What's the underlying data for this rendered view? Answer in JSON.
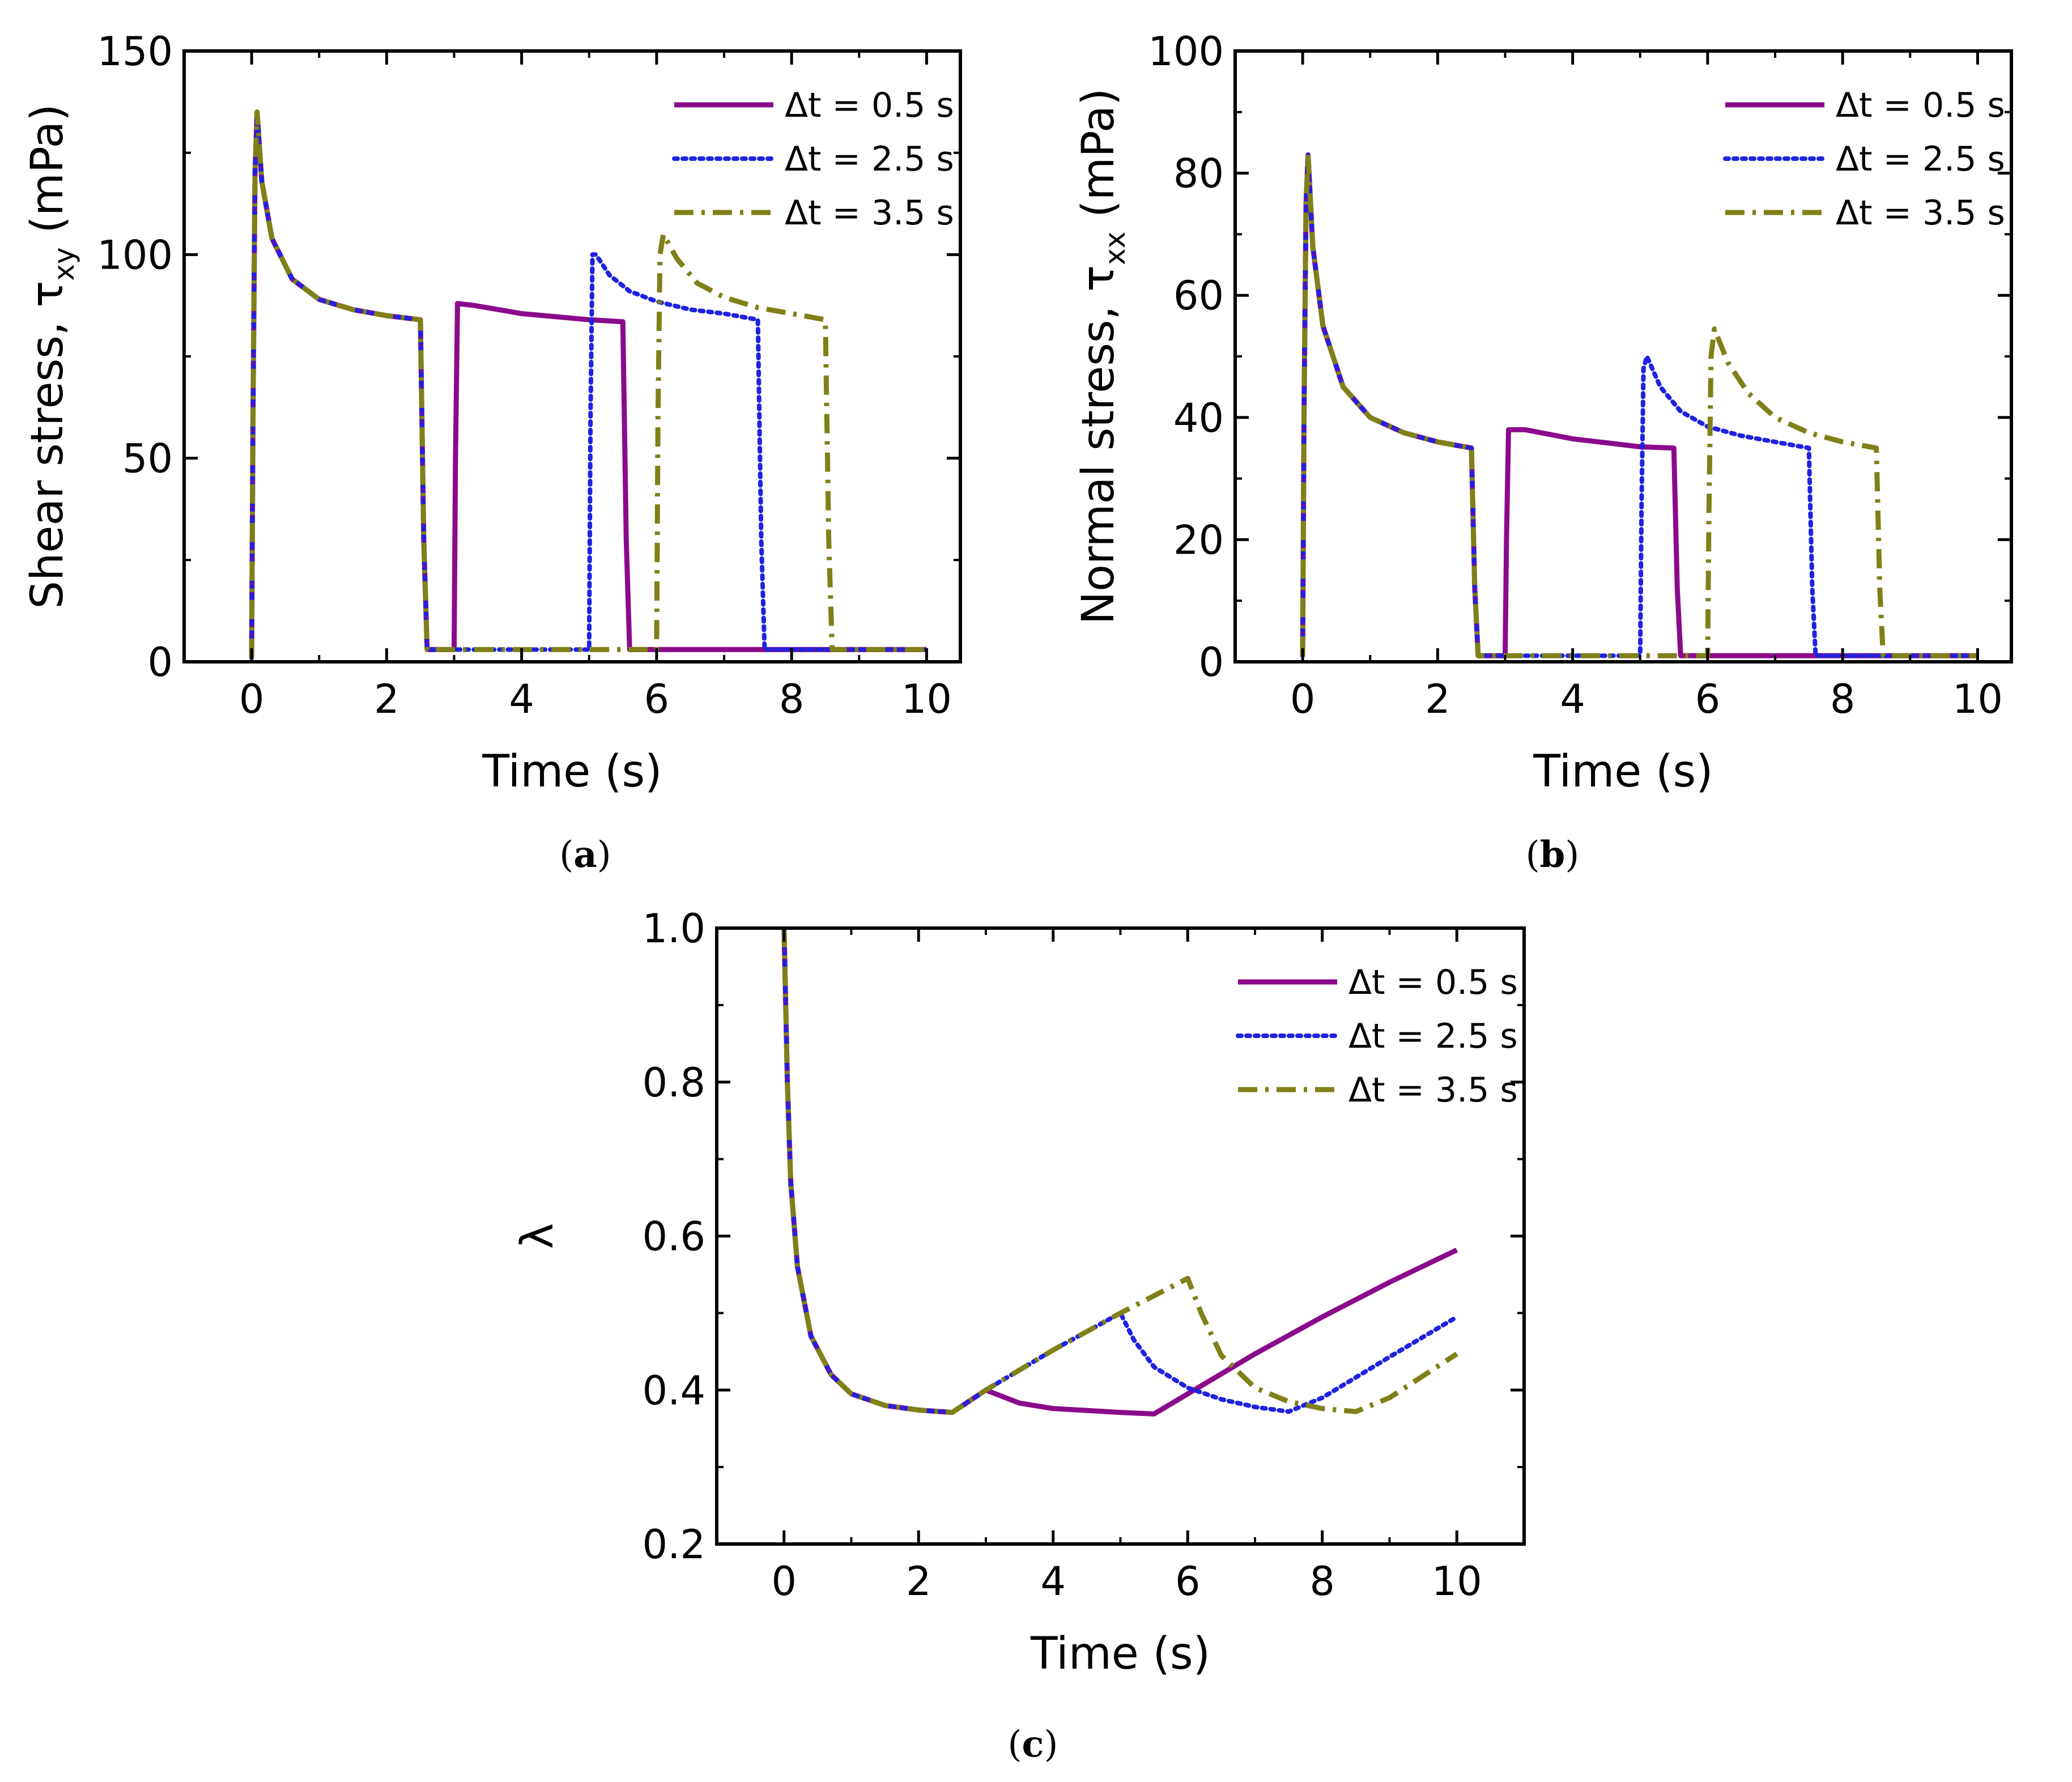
{
  "chart_data": [
    {
      "id": "a",
      "type": "line",
      "caption": "(a)",
      "caption_letter": "a",
      "xlabel": "Time (s)",
      "ylabel_main": "Shear stress, τ",
      "ylabel_sub": "xy",
      "ylabel_unit": "(mPa)",
      "xlim": [
        -1,
        10.5
      ],
      "ylim": [
        0,
        150
      ],
      "xticks": [
        0,
        2,
        4,
        6,
        8,
        10
      ],
      "xtick_labels": [
        "0",
        "2",
        "4",
        "6",
        "8",
        "10"
      ],
      "yticks": [
        0,
        50,
        100,
        150
      ],
      "ytick_labels": [
        "0",
        "50",
        "100",
        "150"
      ],
      "legend_position": "top-right",
      "series": [
        {
          "name": "Δt = 0.5 s",
          "color": "#8b0a8b",
          "dash": "solid",
          "points": [
            [
              0,
              1
            ],
            [
              0.02,
              60
            ],
            [
              0.05,
              120
            ],
            [
              0.08,
              135
            ],
            [
              0.15,
              118
            ],
            [
              0.3,
              104
            ],
            [
              0.6,
              94
            ],
            [
              1.0,
              89
            ],
            [
              1.5,
              86.5
            ],
            [
              2.0,
              85
            ],
            [
              2.5,
              84
            ],
            [
              2.55,
              30
            ],
            [
              2.6,
              3
            ],
            [
              2.8,
              3
            ],
            [
              3.0,
              3
            ],
            [
              3.02,
              50
            ],
            [
              3.05,
              88
            ],
            [
              3.3,
              87.5
            ],
            [
              4.0,
              85.5
            ],
            [
              5.0,
              84
            ],
            [
              5.5,
              83.5
            ],
            [
              5.55,
              30
            ],
            [
              5.6,
              3
            ],
            [
              8,
              3
            ],
            [
              10,
              3
            ]
          ]
        },
        {
          "name": "Δt = 2.5 s",
          "color": "#1f22e0",
          "dash": "dotted",
          "points": [
            [
              0,
              1
            ],
            [
              0.02,
              60
            ],
            [
              0.05,
              120
            ],
            [
              0.08,
              135
            ],
            [
              0.15,
              118
            ],
            [
              0.3,
              104
            ],
            [
              0.6,
              94
            ],
            [
              1.0,
              89
            ],
            [
              1.5,
              86.5
            ],
            [
              2.0,
              85
            ],
            [
              2.5,
              84
            ],
            [
              2.55,
              30
            ],
            [
              2.6,
              3
            ],
            [
              4.0,
              3
            ],
            [
              5.0,
              3
            ],
            [
              5.02,
              60
            ],
            [
              5.05,
              100
            ],
            [
              5.1,
              100
            ],
            [
              5.3,
              95
            ],
            [
              5.6,
              91
            ],
            [
              6.0,
              88.5
            ],
            [
              6.5,
              86.5
            ],
            [
              7.0,
              85.5
            ],
            [
              7.5,
              84
            ],
            [
              7.55,
              30
            ],
            [
              7.6,
              3
            ],
            [
              10,
              3
            ]
          ]
        },
        {
          "name": "Δt = 3.5 s",
          "color": "#808018",
          "dash": "dashdot",
          "points": [
            [
              0,
              1
            ],
            [
              0.02,
              60
            ],
            [
              0.05,
              120
            ],
            [
              0.08,
              135
            ],
            [
              0.15,
              118
            ],
            [
              0.3,
              104
            ],
            [
              0.6,
              94
            ],
            [
              1.0,
              89
            ],
            [
              1.5,
              86.5
            ],
            [
              2.0,
              85
            ],
            [
              2.5,
              84
            ],
            [
              2.55,
              30
            ],
            [
              2.6,
              3
            ],
            [
              4.0,
              3
            ],
            [
              6.0,
              3
            ],
            [
              6.02,
              60
            ],
            [
              6.05,
              100
            ],
            [
              6.1,
              105
            ],
            [
              6.3,
              99
            ],
            [
              6.6,
              93
            ],
            [
              7.0,
              89.5
            ],
            [
              7.5,
              87
            ],
            [
              8.0,
              85.5
            ],
            [
              8.5,
              84
            ],
            [
              8.55,
              30
            ],
            [
              8.6,
              3
            ],
            [
              10,
              3
            ]
          ]
        }
      ]
    },
    {
      "id": "b",
      "type": "line",
      "caption": "(b)",
      "caption_letter": "b",
      "xlabel": "Time (s)",
      "ylabel_main": "Normal stress, τ",
      "ylabel_sub": "xx",
      "ylabel_unit": "(mPa)",
      "xlim": [
        -1,
        10.5
      ],
      "ylim": [
        0,
        100
      ],
      "xticks": [
        0,
        2,
        4,
        6,
        8,
        10
      ],
      "xtick_labels": [
        "0",
        "2",
        "4",
        "6",
        "8",
        "10"
      ],
      "yticks": [
        0,
        20,
        40,
        60,
        80,
        100
      ],
      "ytick_labels": [
        "0",
        "20",
        "40",
        "60",
        "80",
        "100"
      ],
      "legend_position": "top-right",
      "series": [
        {
          "name": "Δt = 0.5 s",
          "color": "#8b0a8b",
          "dash": "solid",
          "points": [
            [
              0,
              1
            ],
            [
              0.02,
              40
            ],
            [
              0.05,
              75
            ],
            [
              0.08,
              83
            ],
            [
              0.15,
              68
            ],
            [
              0.3,
              55
            ],
            [
              0.6,
              45
            ],
            [
              1.0,
              40
            ],
            [
              1.5,
              37.5
            ],
            [
              2.0,
              36
            ],
            [
              2.5,
              35
            ],
            [
              2.55,
              12
            ],
            [
              2.6,
              1
            ],
            [
              3.0,
              1
            ],
            [
              3.02,
              20
            ],
            [
              3.05,
              38
            ],
            [
              3.3,
              38
            ],
            [
              4.0,
              36.5
            ],
            [
              5.0,
              35.2
            ],
            [
              5.5,
              35
            ],
            [
              5.55,
              12
            ],
            [
              5.6,
              1
            ],
            [
              10,
              1
            ]
          ]
        },
        {
          "name": "Δt = 2.5 s",
          "color": "#1f22e0",
          "dash": "dotted",
          "points": [
            [
              0,
              1
            ],
            [
              0.02,
              40
            ],
            [
              0.05,
              75
            ],
            [
              0.08,
              83
            ],
            [
              0.15,
              68
            ],
            [
              0.3,
              55
            ],
            [
              0.6,
              45
            ],
            [
              1.0,
              40
            ],
            [
              1.5,
              37.5
            ],
            [
              2.0,
              36
            ],
            [
              2.5,
              35
            ],
            [
              2.55,
              12
            ],
            [
              2.6,
              1
            ],
            [
              5.0,
              1
            ],
            [
              5.02,
              25
            ],
            [
              5.05,
              48
            ],
            [
              5.1,
              50
            ],
            [
              5.3,
              45
            ],
            [
              5.6,
              41
            ],
            [
              6.0,
              38.5
            ],
            [
              6.5,
              37
            ],
            [
              7.0,
              36
            ],
            [
              7.5,
              35
            ],
            [
              7.55,
              12
            ],
            [
              7.6,
              1
            ],
            [
              10,
              1
            ]
          ]
        },
        {
          "name": "Δt = 3.5 s",
          "color": "#808018",
          "dash": "dashdot",
          "points": [
            [
              0,
              1
            ],
            [
              0.02,
              40
            ],
            [
              0.05,
              75
            ],
            [
              0.08,
              83
            ],
            [
              0.15,
              68
            ],
            [
              0.3,
              55
            ],
            [
              0.6,
              45
            ],
            [
              1.0,
              40
            ],
            [
              1.5,
              37.5
            ],
            [
              2.0,
              36
            ],
            [
              2.5,
              35
            ],
            [
              2.55,
              12
            ],
            [
              2.6,
              1
            ],
            [
              6.0,
              1
            ],
            [
              6.02,
              25
            ],
            [
              6.05,
              50
            ],
            [
              6.1,
              54.5
            ],
            [
              6.3,
              49
            ],
            [
              6.6,
              44
            ],
            [
              7.0,
              40
            ],
            [
              7.5,
              37.5
            ],
            [
              8.0,
              36
            ],
            [
              8.5,
              35
            ],
            [
              8.55,
              12
            ],
            [
              8.6,
              1
            ],
            [
              10,
              1
            ]
          ]
        }
      ]
    },
    {
      "id": "c",
      "type": "line",
      "caption": "(c)",
      "caption_letter": "c",
      "xlabel": "Time (s)",
      "ylabel_main": "λ",
      "ylabel_sub": "",
      "ylabel_unit": "",
      "xlim": [
        -1,
        11
      ],
      "ylim": [
        0.2,
        1.0
      ],
      "xticks": [
        0,
        2,
        4,
        6,
        8,
        10
      ],
      "xtick_labels": [
        "0",
        "2",
        "4",
        "6",
        "8",
        "10"
      ],
      "yticks": [
        0.2,
        0.4,
        0.6,
        0.8,
        1.0
      ],
      "ytick_labels": [
        "0.2",
        "0.4",
        "0.6",
        "0.8",
        "1.0"
      ],
      "legend_position": "top-right",
      "series": [
        {
          "name": "Δt = 0.5 s",
          "color": "#8b0a8b",
          "dash": "solid",
          "points": [
            [
              0,
              1.0
            ],
            [
              0.05,
              0.8
            ],
            [
              0.1,
              0.67
            ],
            [
              0.2,
              0.56
            ],
            [
              0.4,
              0.47
            ],
            [
              0.7,
              0.42
            ],
            [
              1.0,
              0.395
            ],
            [
              1.5,
              0.38
            ],
            [
              2.0,
              0.374
            ],
            [
              2.5,
              0.371
            ],
            [
              3.0,
              0.4
            ],
            [
              3.5,
              0.383
            ],
            [
              4.0,
              0.376
            ],
            [
              5.0,
              0.371
            ],
            [
              5.5,
              0.369
            ],
            [
              6.0,
              0.395
            ],
            [
              7.0,
              0.447
            ],
            [
              8.0,
              0.495
            ],
            [
              9.0,
              0.54
            ],
            [
              10.0,
              0.582
            ]
          ]
        },
        {
          "name": "Δt = 2.5 s",
          "color": "#1f22e0",
          "dash": "dotted",
          "points": [
            [
              0,
              1.0
            ],
            [
              0.05,
              0.8
            ],
            [
              0.1,
              0.67
            ],
            [
              0.2,
              0.56
            ],
            [
              0.4,
              0.47
            ],
            [
              0.7,
              0.42
            ],
            [
              1.0,
              0.395
            ],
            [
              1.5,
              0.38
            ],
            [
              2.0,
              0.374
            ],
            [
              2.5,
              0.371
            ],
            [
              3.0,
              0.4
            ],
            [
              4.0,
              0.452
            ],
            [
              5.0,
              0.5
            ],
            [
              5.2,
              0.465
            ],
            [
              5.5,
              0.43
            ],
            [
              6.0,
              0.403
            ],
            [
              6.5,
              0.388
            ],
            [
              7.0,
              0.378
            ],
            [
              7.5,
              0.372
            ],
            [
              8.0,
              0.39
            ],
            [
              9.0,
              0.443
            ],
            [
              10.0,
              0.495
            ]
          ]
        },
        {
          "name": "Δt = 3.5 s",
          "color": "#808018",
          "dash": "dashdot",
          "points": [
            [
              0,
              1.0
            ],
            [
              0.05,
              0.8
            ],
            [
              0.1,
              0.67
            ],
            [
              0.2,
              0.56
            ],
            [
              0.4,
              0.47
            ],
            [
              0.7,
              0.42
            ],
            [
              1.0,
              0.395
            ],
            [
              1.5,
              0.38
            ],
            [
              2.0,
              0.374
            ],
            [
              2.5,
              0.371
            ],
            [
              3.0,
              0.4
            ],
            [
              4.0,
              0.452
            ],
            [
              5.0,
              0.5
            ],
            [
              6.0,
              0.545
            ],
            [
              6.2,
              0.5
            ],
            [
              6.5,
              0.445
            ],
            [
              7.0,
              0.403
            ],
            [
              7.5,
              0.385
            ],
            [
              8.0,
              0.376
            ],
            [
              8.5,
              0.372
            ],
            [
              9.0,
              0.39
            ],
            [
              10.0,
              0.447
            ]
          ]
        }
      ]
    }
  ]
}
